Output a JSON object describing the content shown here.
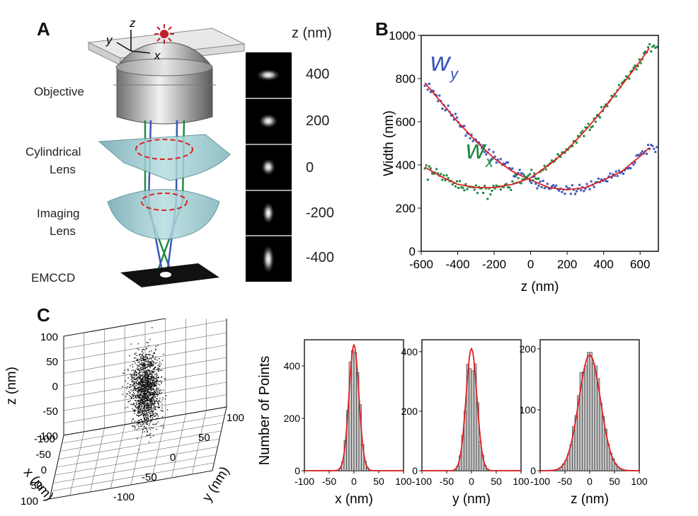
{
  "panels": {
    "a": "A",
    "b": "B",
    "c": "C"
  },
  "panel_a": {
    "components": [
      "Objective",
      "Cylindrical",
      "Lens",
      "Imaging",
      "Lens",
      "EMCCD"
    ],
    "axes": {
      "x": "x",
      "y": "y",
      "z": "z"
    },
    "zstack_header": "z (nm)",
    "zstack_labels": [
      "400",
      "200",
      "0",
      "-200",
      "-400"
    ],
    "psf_shape": [
      {
        "sx": 10,
        "sy": 5
      },
      {
        "sx": 8,
        "sy": 6
      },
      {
        "sx": 6,
        "sy": 7
      },
      {
        "sx": 5,
        "sy": 9
      },
      {
        "sx": 5,
        "sy": 12
      }
    ]
  },
  "chart_data": [
    {
      "type": "scatter",
      "panel": "B",
      "xlabel": "z (nm)",
      "ylabel": "Width (nm)",
      "xlim": [
        -600,
        700
      ],
      "ylim": [
        0,
        1000
      ],
      "xticks": [
        "-600",
        "-400",
        "-200",
        "0",
        "200",
        "400",
        "600"
      ],
      "yticks": [
        "0",
        "200",
        "400",
        "600",
        "800",
        "1000"
      ],
      "series": [
        {
          "name": "wy",
          "label_main": "w",
          "label_sub": "y",
          "color": "#3a57b8",
          "x": [
            -580,
            -500,
            -400,
            -300,
            -200,
            -100,
            0,
            100,
            200,
            300,
            400,
            500,
            600,
            650
          ],
          "y": [
            780,
            700,
            600,
            510,
            430,
            370,
            330,
            295,
            285,
            295,
            330,
            370,
            440,
            480
          ]
        },
        {
          "name": "wx",
          "label_main": "w",
          "label_sub": "x",
          "color": "#1f8a43",
          "x": [
            -580,
            -500,
            -400,
            -300,
            -200,
            -100,
            0,
            100,
            200,
            300,
            400,
            500,
            600,
            650
          ],
          "y": [
            390,
            350,
            310,
            295,
            295,
            310,
            340,
            400,
            470,
            560,
            660,
            770,
            880,
            940
          ]
        }
      ],
      "fit_color": "#e02020"
    },
    {
      "type": "scatter3d",
      "panel": "C",
      "axis_labels": {
        "x": "x (nm)",
        "y": "y (nm)",
        "z": "z (nm)"
      },
      "zticks": [
        "100",
        "50",
        "0",
        "-50",
        "-100"
      ],
      "xticks": [
        "-100",
        "-50",
        "0",
        "50",
        "100"
      ],
      "yticks": [
        "100",
        "50",
        "0",
        "-50",
        "-100"
      ],
      "point_count": 1500
    },
    {
      "type": "histogram",
      "panel": "C",
      "ylabel": "Number of Points",
      "subplots": [
        {
          "xlabel": "x (nm)",
          "xlim": [
            -100,
            100
          ],
          "ymax": 500,
          "yticks": [
            "0",
            "200",
            "400"
          ],
          "xticks": [
            "-100",
            "-50",
            "0",
            "50",
            "100"
          ],
          "sigma": 10,
          "peak": 480
        },
        {
          "xlabel": "y (nm)",
          "xlim": [
            -100,
            100
          ],
          "ymax": 440,
          "yticks": [
            "0",
            "200",
            "400"
          ],
          "xticks": [
            "-100",
            "-50",
            "0",
            "50",
            "100"
          ],
          "sigma": 11,
          "peak": 410
        },
        {
          "xlabel": "z (nm)",
          "xlim": [
            -100,
            100
          ],
          "ymax": 215,
          "yticks": [
            "0",
            "100",
            "200"
          ],
          "xticks": [
            "-100",
            "-50",
            "0",
            "50",
            "100"
          ],
          "sigma": 22,
          "peak": 190
        }
      ],
      "fit_color": "#e02020",
      "bar_color": "#c8c8c8"
    }
  ]
}
